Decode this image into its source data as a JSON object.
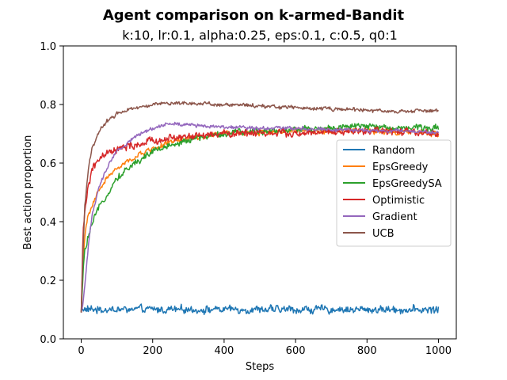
{
  "chart_data": {
    "type": "line",
    "title": "Agent comparison on k-armed-Bandit",
    "subtitle": "k:10, lr:0.1, alpha:0.25, eps:0.1, c:0.5, q0:1",
    "xlabel": "Steps",
    "ylabel": "Best action proportion",
    "xlim": [
      -50,
      1050
    ],
    "ylim": [
      0.0,
      1.0
    ],
    "xticks": [
      0,
      200,
      400,
      600,
      800,
      1000
    ],
    "yticks": [
      0.0,
      0.2,
      0.4,
      0.6,
      0.8,
      1.0
    ],
    "grid": false,
    "legend_position": "center-right",
    "series": [
      {
        "name": "Random",
        "color": "#1f77b4",
        "points": [
          [
            0,
            0.1
          ],
          [
            100,
            0.1
          ],
          [
            200,
            0.1
          ],
          [
            300,
            0.1
          ],
          [
            400,
            0.1
          ],
          [
            500,
            0.1
          ],
          [
            600,
            0.1
          ],
          [
            700,
            0.1
          ],
          [
            800,
            0.1
          ],
          [
            900,
            0.1
          ],
          [
            1000,
            0.1
          ]
        ],
        "noise": 0.008
      },
      {
        "name": "EpsGreedy",
        "color": "#ff7f0e",
        "points": [
          [
            0,
            0.09
          ],
          [
            5,
            0.28
          ],
          [
            10,
            0.35
          ],
          [
            20,
            0.42
          ],
          [
            40,
            0.48
          ],
          [
            60,
            0.53
          ],
          [
            80,
            0.56
          ],
          [
            100,
            0.58
          ],
          [
            150,
            0.62
          ],
          [
            200,
            0.65
          ],
          [
            250,
            0.67
          ],
          [
            300,
            0.685
          ],
          [
            350,
            0.69
          ],
          [
            400,
            0.7
          ],
          [
            500,
            0.705
          ],
          [
            600,
            0.71
          ],
          [
            700,
            0.71
          ],
          [
            800,
            0.71
          ],
          [
            900,
            0.705
          ],
          [
            1000,
            0.7
          ]
        ],
        "noise": 0.006
      },
      {
        "name": "EpsGreedySA",
        "color": "#2ca02c",
        "points": [
          [
            0,
            0.09
          ],
          [
            5,
            0.22
          ],
          [
            10,
            0.3
          ],
          [
            20,
            0.35
          ],
          [
            40,
            0.42
          ],
          [
            60,
            0.47
          ],
          [
            80,
            0.51
          ],
          [
            100,
            0.55
          ],
          [
            150,
            0.6
          ],
          [
            200,
            0.64
          ],
          [
            250,
            0.66
          ],
          [
            300,
            0.68
          ],
          [
            350,
            0.69
          ],
          [
            400,
            0.7
          ],
          [
            500,
            0.71
          ],
          [
            600,
            0.715
          ],
          [
            700,
            0.72
          ],
          [
            800,
            0.725
          ],
          [
            900,
            0.72
          ],
          [
            1000,
            0.72
          ]
        ],
        "noise": 0.007
      },
      {
        "name": "Optimistic",
        "color": "#d62728",
        "points": [
          [
            0,
            0.09
          ],
          [
            5,
            0.35
          ],
          [
            10,
            0.44
          ],
          [
            20,
            0.52
          ],
          [
            30,
            0.58
          ],
          [
            50,
            0.61
          ],
          [
            70,
            0.63
          ],
          [
            100,
            0.645
          ],
          [
            150,
            0.66
          ],
          [
            200,
            0.675
          ],
          [
            250,
            0.685
          ],
          [
            300,
            0.69
          ],
          [
            400,
            0.7
          ],
          [
            500,
            0.705
          ],
          [
            600,
            0.7
          ],
          [
            700,
            0.705
          ],
          [
            800,
            0.71
          ],
          [
            900,
            0.705
          ],
          [
            1000,
            0.7
          ]
        ],
        "noise": 0.008
      },
      {
        "name": "Gradient",
        "color": "#9467bd",
        "points": [
          [
            0,
            0.09
          ],
          [
            5,
            0.12
          ],
          [
            10,
            0.18
          ],
          [
            20,
            0.32
          ],
          [
            30,
            0.42
          ],
          [
            50,
            0.52
          ],
          [
            80,
            0.6
          ],
          [
            100,
            0.64
          ],
          [
            150,
            0.69
          ],
          [
            200,
            0.72
          ],
          [
            250,
            0.735
          ],
          [
            300,
            0.73
          ],
          [
            400,
            0.725
          ],
          [
            500,
            0.72
          ],
          [
            600,
            0.72
          ],
          [
            700,
            0.715
          ],
          [
            800,
            0.71
          ],
          [
            900,
            0.71
          ],
          [
            1000,
            0.705
          ]
        ],
        "noise": 0.004
      },
      {
        "name": "UCB",
        "color": "#8c564b",
        "points": [
          [
            0,
            0.09
          ],
          [
            5,
            0.3
          ],
          [
            10,
            0.45
          ],
          [
            20,
            0.58
          ],
          [
            30,
            0.65
          ],
          [
            50,
            0.71
          ],
          [
            70,
            0.74
          ],
          [
            100,
            0.77
          ],
          [
            150,
            0.79
          ],
          [
            200,
            0.8
          ],
          [
            250,
            0.805
          ],
          [
            300,
            0.805
          ],
          [
            400,
            0.8
          ],
          [
            500,
            0.795
          ],
          [
            600,
            0.79
          ],
          [
            700,
            0.785
          ],
          [
            800,
            0.78
          ],
          [
            900,
            0.775
          ],
          [
            1000,
            0.78
          ]
        ],
        "noise": 0.004
      }
    ]
  }
}
